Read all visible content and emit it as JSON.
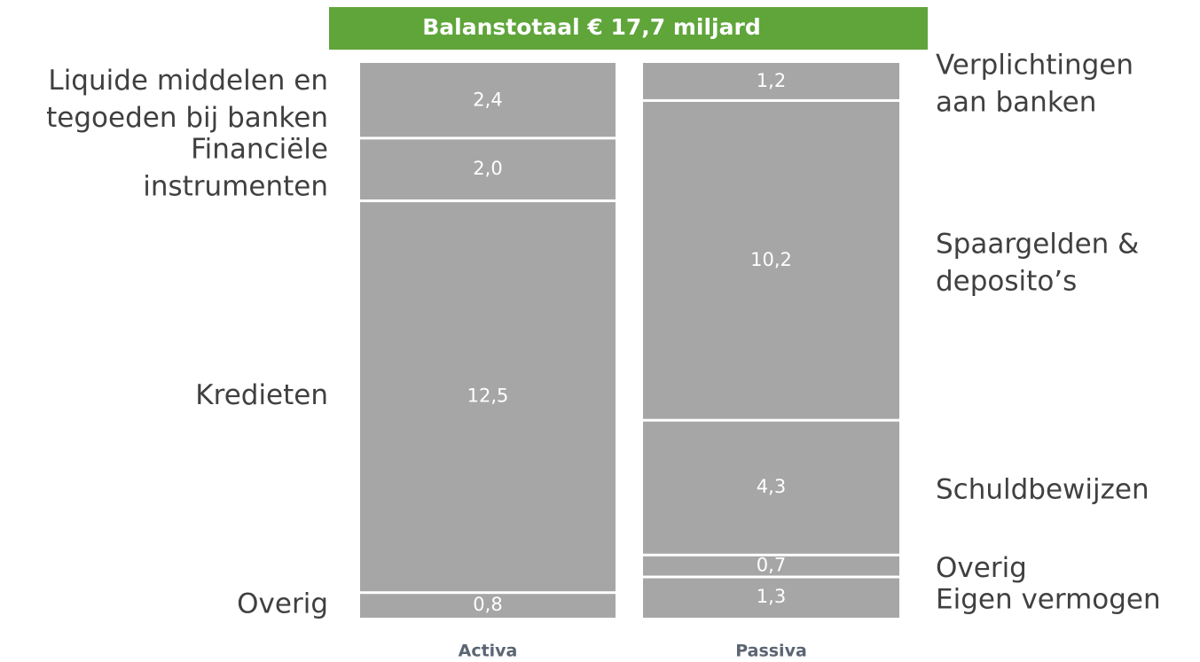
{
  "chart_data": {
    "type": "stacked-bar",
    "title": "Balanstotaal € 17,7 miljard",
    "title_color": "#5fa53a",
    "color": "#a6a6a6",
    "stacks": [
      {
        "name": "Activa",
        "label_side": "left",
        "labels": [
          [
            "Liquide middelen en",
            "tegoeden bij banken"
          ],
          [
            "Financiële",
            "instrumenten"
          ],
          [
            "Kredieten"
          ],
          [
            "Overig"
          ]
        ],
        "values": [
          2.4,
          2.0,
          12.5,
          0.8
        ],
        "value_labels": [
          "2,4",
          "2,0",
          "12,5",
          "0,8"
        ]
      },
      {
        "name": "Passiva",
        "label_side": "right",
        "labels": [
          [
            "Verplichtingen",
            "aan banken"
          ],
          [
            "Spaargelden &",
            "deposito’s"
          ],
          [
            "Schuldbewijzen"
          ],
          [
            "Overig"
          ],
          [
            "Eigen vermogen"
          ]
        ],
        "values": [
          1.2,
          10.2,
          4.3,
          0.7,
          1.3
        ],
        "value_labels": [
          "1,2",
          "10,2",
          "4,3",
          "0,7",
          "1,3"
        ]
      }
    ]
  }
}
